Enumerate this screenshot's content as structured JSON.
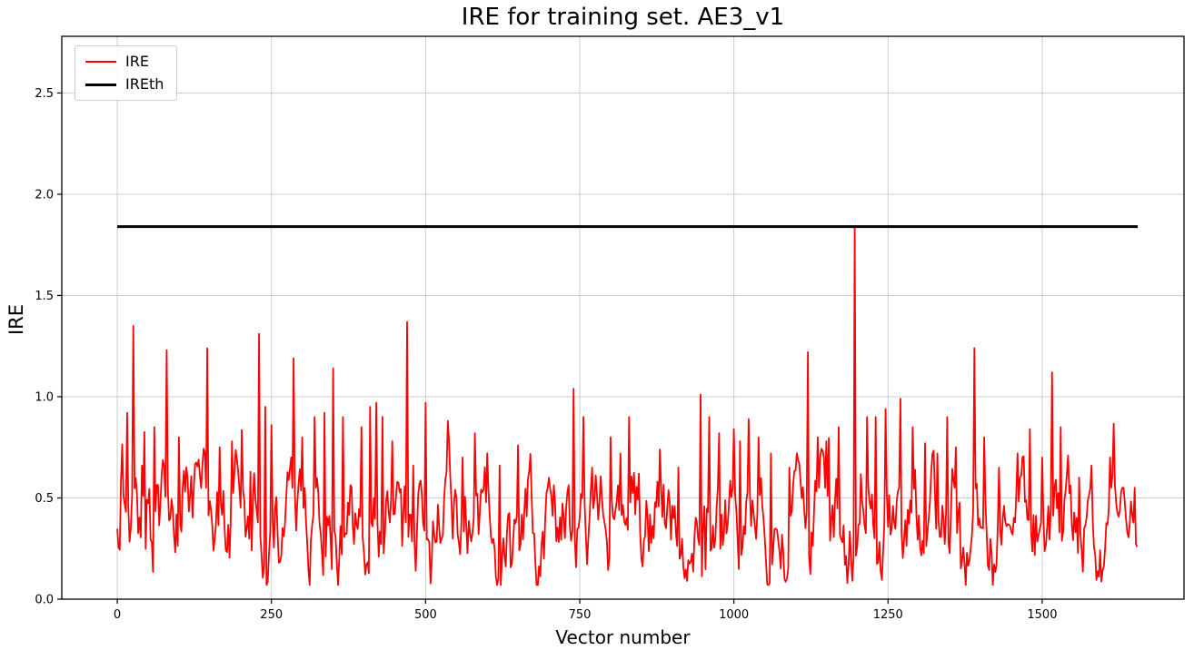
{
  "chart_data": {
    "type": "line",
    "title": "IRE for training set. AE3_v1",
    "xlabel": "Vector number",
    "ylabel": "IRE",
    "xlim": [
      -90,
      1730
    ],
    "ylim": [
      0,
      2.78
    ],
    "x_ticks": [
      0,
      250,
      500,
      750,
      1000,
      1250,
      1500
    ],
    "y_ticks": [
      "0.0",
      "0.5",
      "1.0",
      "1.5",
      "2.0",
      "2.5"
    ],
    "grid": true,
    "grid_color": "#cccccc",
    "legend": {
      "position": "upper-left",
      "entries": [
        {
          "label": "IRE",
          "color": "#ff0000",
          "linewidth": 2
        },
        {
          "label": "IREth",
          "color": "#000000",
          "linewidth": 3
        }
      ]
    },
    "series": [
      {
        "name": "IRE",
        "color": "#ff0000",
        "style": "noisy-line",
        "x_range": [
          0,
          1655
        ],
        "x_step": 2,
        "noise_band": [
          0.07,
          0.95
        ],
        "baseline_mean": 0.38,
        "spikes": [
          [
            15,
            0.92
          ],
          [
            25,
            1.35
          ],
          [
            40,
            0.66
          ],
          [
            60,
            0.85
          ],
          [
            80,
            1.23
          ],
          [
            100,
            0.8
          ],
          [
            145,
            1.24
          ],
          [
            165,
            0.75
          ],
          [
            185,
            0.78
          ],
          [
            230,
            1.31
          ],
          [
            240,
            0.95
          ],
          [
            250,
            0.86
          ],
          [
            285,
            1.19
          ],
          [
            300,
            0.8
          ],
          [
            320,
            0.9
          ],
          [
            335,
            0.92
          ],
          [
            350,
            1.14
          ],
          [
            365,
            0.9
          ],
          [
            395,
            0.85
          ],
          [
            410,
            0.95
          ],
          [
            420,
            0.97
          ],
          [
            430,
            0.9
          ],
          [
            445,
            0.78
          ],
          [
            470,
            1.37
          ],
          [
            480,
            0.66
          ],
          [
            500,
            0.97
          ],
          [
            560,
            0.7
          ],
          [
            580,
            0.82
          ],
          [
            600,
            0.72
          ],
          [
            620,
            0.66
          ],
          [
            650,
            0.76
          ],
          [
            700,
            0.6
          ],
          [
            740,
            1.04
          ],
          [
            755,
            0.9
          ],
          [
            770,
            0.65
          ],
          [
            800,
            0.8
          ],
          [
            815,
            0.72
          ],
          [
            830,
            0.9
          ],
          [
            845,
            0.62
          ],
          [
            880,
            0.74
          ],
          [
            910,
            0.65
          ],
          [
            945,
            1.01
          ],
          [
            960,
            0.9
          ],
          [
            975,
            0.82
          ],
          [
            1000,
            0.84
          ],
          [
            1010,
            0.78
          ],
          [
            1040,
            0.8
          ],
          [
            1060,
            0.72
          ],
          [
            1090,
            0.65
          ],
          [
            1120,
            1.22
          ],
          [
            1135,
            0.8
          ],
          [
            1150,
            0.78
          ],
          [
            1170,
            0.85
          ],
          [
            1195,
            1.84
          ],
          [
            1215,
            0.9
          ],
          [
            1230,
            0.9
          ],
          [
            1245,
            0.94
          ],
          [
            1270,
            0.99
          ],
          [
            1290,
            0.85
          ],
          [
            1310,
            0.77
          ],
          [
            1330,
            0.72
          ],
          [
            1345,
            0.9
          ],
          [
            1360,
            0.75
          ],
          [
            1390,
            1.24
          ],
          [
            1405,
            0.8
          ],
          [
            1430,
            0.65
          ],
          [
            1460,
            0.72
          ],
          [
            1480,
            0.84
          ],
          [
            1500,
            0.7
          ],
          [
            1515,
            1.12
          ],
          [
            1530,
            0.85
          ],
          [
            1560,
            0.6
          ],
          [
            1580,
            0.66
          ],
          [
            1610,
            0.7
          ],
          [
            1630,
            0.55
          ],
          [
            1650,
            0.55
          ]
        ]
      },
      {
        "name": "IREth",
        "color": "#000000",
        "style": "hline",
        "y": 1.84,
        "x_range": [
          0,
          1655
        ]
      }
    ]
  }
}
